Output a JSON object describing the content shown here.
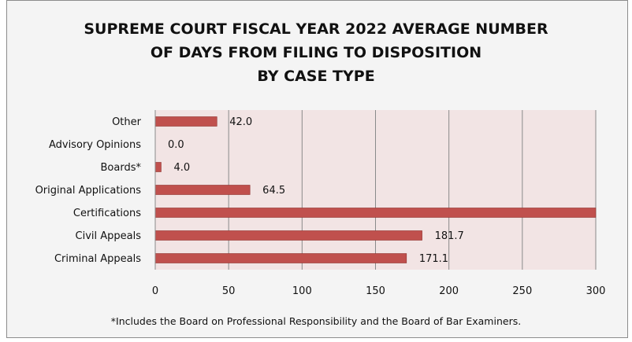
{
  "chart_data": {
    "type": "bar",
    "orientation": "horizontal",
    "title_lines": [
      "SUPREME COURT FISCAL YEAR 2022 AVERAGE NUMBER",
      "OF DAYS FROM FILING TO DISPOSITION",
      "BY CASE TYPE"
    ],
    "categories": [
      "Other",
      "Advisory Opinions",
      "Boards*",
      "Original Applications",
      "Certifications",
      "Civil Appeals",
      "Criminal Appeals"
    ],
    "values": [
      42.0,
      0.0,
      4.0,
      64.5,
      300,
      181.7,
      171.1
    ],
    "value_labels": [
      "42.0",
      "0.0",
      "4.0",
      "64.5",
      "",
      "181.7",
      "171.1"
    ],
    "xlim": [
      0,
      300
    ],
    "xticks": [
      "0",
      "50",
      "100",
      "150",
      "200",
      "250",
      "300"
    ],
    "grid": "vertical",
    "bar_color": "#c0504d",
    "plot_background": "#f2e4e4",
    "footnote": "*Includes the Board on Professional Responsibility and the Board of Bar Examiners."
  }
}
